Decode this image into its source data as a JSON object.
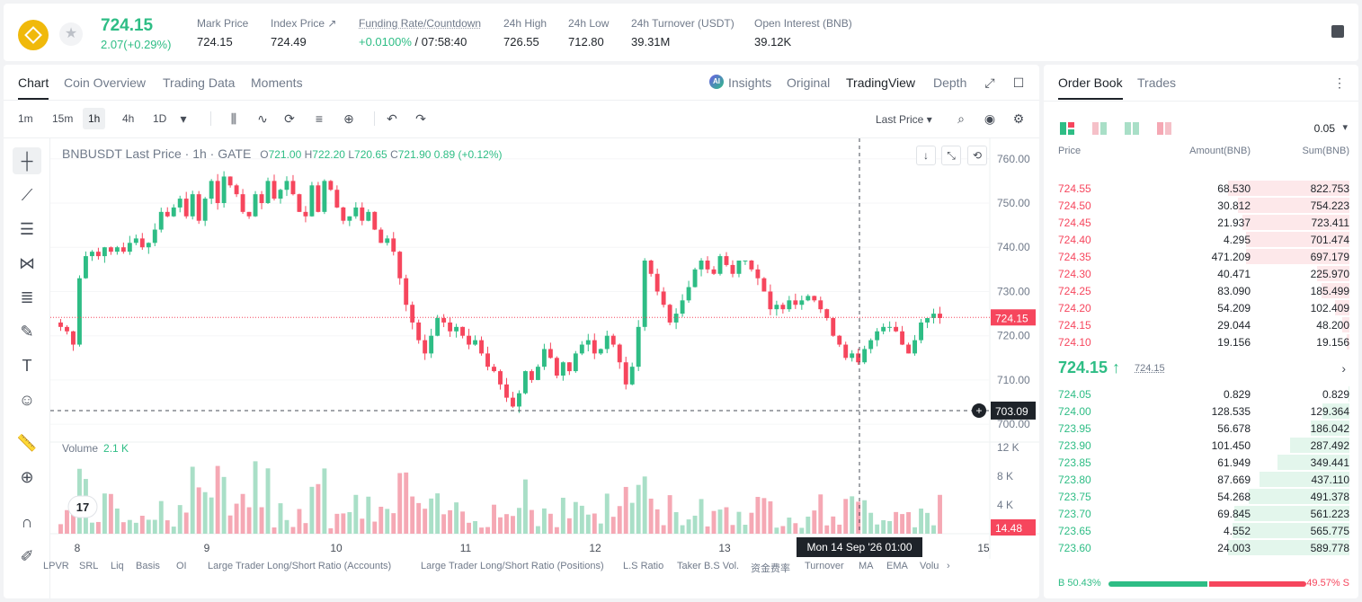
{
  "header": {
    "last_price": "724.15",
    "change": "2.07(+0.29%)",
    "stats": [
      {
        "label": "Mark Price",
        "value": "724.15"
      },
      {
        "label": "Index Price ↗",
        "value": "724.49"
      },
      {
        "label": "Funding Rate/Countdown",
        "value_rate": "+0.0100%",
        "value_count": " / 07:58:40"
      },
      {
        "label": "24h High",
        "value": "726.55"
      },
      {
        "label": "24h Low",
        "value": "712.80"
      },
      {
        "label": "24h Turnover (USDT)",
        "value": "39.31M"
      },
      {
        "label": "Open Interest (BNB)",
        "value": "39.12K"
      }
    ]
  },
  "tabs": {
    "left": [
      "Chart",
      "Coin Overview",
      "Trading Data",
      "Moments"
    ],
    "right": [
      "Insights",
      "Original",
      "TradingView",
      "Depth"
    ],
    "ai_badge": "AI"
  },
  "toolbar": {
    "timeframes": [
      "1m",
      "15m",
      "1h",
      "4h",
      "1D"
    ],
    "price_type": "Last Price ▾"
  },
  "legend": {
    "title": "BNBUSDT Last Price · 1h · GATE",
    "o_label": "O",
    "o": "721.00",
    "h_label": "H",
    "h": "722.20",
    "l_label": "L",
    "l": "720.65",
    "c_label": "C",
    "c": "721.90",
    "chg": "0.89 (+0.12%)",
    "volume_label": "Volume",
    "volume_value": "2.1 K"
  },
  "chart_data": {
    "type": "candlestick",
    "symbol": "BNBUSDT",
    "interval": "1h",
    "y_ticks": [
      "760.00",
      "750.00",
      "740.00",
      "730.00",
      "720.00",
      "710.00",
      "700.00"
    ],
    "ylim": [
      698,
      763
    ],
    "vol_ticks": [
      "12 K",
      "8 K",
      "4 K"
    ],
    "x_ticks": [
      "8",
      "9",
      "10",
      "11",
      "12",
      "13",
      "15"
    ],
    "last_price_label": "724.15",
    "last_price": 724.15,
    "crosshair_price_label": "703.09",
    "crosshair_price": 703.09,
    "crosshair_time_label": "Mon 14 Sep '26   01:00",
    "last_volume_label": "14.48",
    "close_path": [
      722,
      721,
      718,
      733,
      738,
      739,
      738,
      740,
      739,
      740,
      739,
      741,
      742,
      740,
      741,
      744,
      748,
      747,
      749,
      751,
      747,
      752,
      746,
      751,
      755,
      750,
      756,
      754,
      752,
      748,
      747,
      752,
      750,
      755,
      751,
      753,
      755,
      752,
      748,
      747,
      754,
      748,
      755,
      753,
      749,
      746,
      747,
      749,
      746,
      748,
      744,
      741,
      742,
      739,
      733,
      727,
      723,
      719,
      716,
      720,
      724,
      723,
      721,
      722,
      720,
      718,
      719,
      716,
      713,
      712,
      709,
      706,
      704,
      707,
      712,
      710,
      713,
      717,
      715,
      711,
      714,
      712,
      716,
      718,
      719,
      716,
      717,
      720,
      718,
      714,
      709,
      713,
      722,
      737,
      734,
      730,
      727,
      723,
      725,
      728,
      731,
      735,
      737,
      735,
      734,
      738,
      736,
      734,
      737,
      737,
      735,
      733,
      730,
      726,
      727,
      726,
      728,
      727,
      728,
      729,
      728,
      726,
      724,
      720,
      718,
      715,
      716,
      714,
      717,
      719,
      721,
      722,
      722,
      721,
      718,
      716,
      719,
      723,
      724,
      725,
      724
    ]
  },
  "indicators": [
    "LPVR",
    "SRL",
    "Liq",
    "Basis",
    "OI",
    "Large Trader Long/Short Ratio (Accounts)",
    "Large Trader Long/Short Ratio (Positions)",
    "L.S Ratio",
    "Taker B.S Vol.",
    "资金费率",
    "Turnover",
    "MA",
    "EMA",
    "Volu"
  ],
  "order_book": {
    "tabs": [
      "Order Book",
      "Trades"
    ],
    "precision": "0.05",
    "headers": [
      "Price",
      "Amount(BNB)",
      "Sum(BNB)"
    ],
    "asks": [
      {
        "price": "724.55",
        "amount": "68.530",
        "sum": "822.753",
        "depth": 1.0
      },
      {
        "price": "724.50",
        "amount": "30.812",
        "sum": "754.223",
        "depth": 0.92
      },
      {
        "price": "724.45",
        "amount": "21.937",
        "sum": "723.411",
        "depth": 0.88
      },
      {
        "price": "724.40",
        "amount": "4.295",
        "sum": "701.474",
        "depth": 0.85
      },
      {
        "price": "724.35",
        "amount": "471.209",
        "sum": "697.179",
        "depth": 0.85
      },
      {
        "price": "724.30",
        "amount": "40.471",
        "sum": "225.970",
        "depth": 0.27
      },
      {
        "price": "724.25",
        "amount": "83.090",
        "sum": "185.499",
        "depth": 0.23
      },
      {
        "price": "724.20",
        "amount": "54.209",
        "sum": "102.409",
        "depth": 0.12
      },
      {
        "price": "724.15",
        "amount": "29.044",
        "sum": "48.200",
        "depth": 0.06
      },
      {
        "price": "724.10",
        "amount": "19.156",
        "sum": "19.156",
        "depth": 0.02
      }
    ],
    "mid_price": "724.15 ↑",
    "mid_mark": "724.15",
    "bids": [
      {
        "price": "724.05",
        "amount": "0.829",
        "sum": "0.829",
        "depth": 0.01
      },
      {
        "price": "724.00",
        "amount": "128.535",
        "sum": "129.364",
        "depth": 0.22
      },
      {
        "price": "723.95",
        "amount": "56.678",
        "sum": "186.042",
        "depth": 0.32
      },
      {
        "price": "723.90",
        "amount": "101.450",
        "sum": "287.492",
        "depth": 0.49
      },
      {
        "price": "723.85",
        "amount": "61.949",
        "sum": "349.441",
        "depth": 0.59
      },
      {
        "price": "723.80",
        "amount": "87.669",
        "sum": "437.110",
        "depth": 0.74
      },
      {
        "price": "723.75",
        "amount": "54.268",
        "sum": "491.378",
        "depth": 0.83
      },
      {
        "price": "723.70",
        "amount": "69.845",
        "sum": "561.223",
        "depth": 0.95
      },
      {
        "price": "723.65",
        "amount": "4.552",
        "sum": "565.775",
        "depth": 0.96
      },
      {
        "price": "723.60",
        "amount": "24.003",
        "sum": "589.778",
        "depth": 1.0
      }
    ],
    "buy_ratio": "B 50.43%",
    "sell_ratio": "49.57% S",
    "buy_fraction": 0.5043
  },
  "colors": {
    "up": "#2ebd85",
    "down": "#f6465d",
    "up_vol": "#a9dfc7",
    "down_vol": "#f5a8b4"
  }
}
